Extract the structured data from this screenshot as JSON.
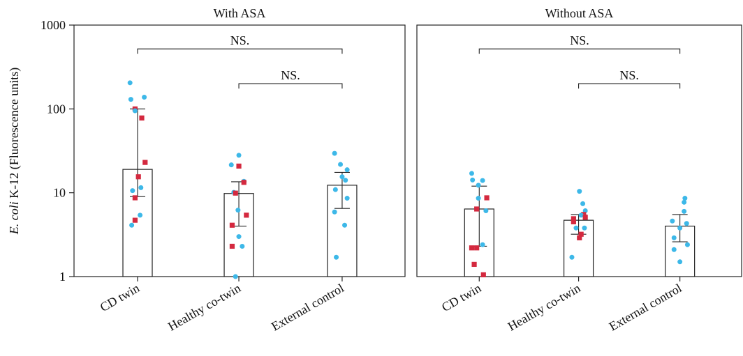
{
  "chart_data": {
    "type": "bar",
    "y_scale": "log",
    "ylim": [
      1,
      1000
    ],
    "yticks": [
      1,
      10,
      100,
      1000
    ],
    "ytick_labels": [
      "1",
      "10",
      "100",
      "1000"
    ],
    "ylabel_italic": "E. coli",
    "ylabel_rest": " K-12 (Fluorescence units)",
    "categories": [
      "CD twin",
      "Healthy co-twin",
      "External control"
    ],
    "colors": {
      "circle": "#3db8e8",
      "square": "#d4293f",
      "bar_edge": "#222222"
    },
    "panels": [
      {
        "title": "With ASA",
        "bars": [
          {
            "mean": 19,
            "err_low": 9,
            "err_high": 100
          },
          {
            "mean": 9.8,
            "err_low": 4,
            "err_high": 13.5
          },
          {
            "mean": 12.3,
            "err_low": 6.5,
            "err_high": 17.5
          }
        ],
        "points": [
          [
            {
              "v": 205,
              "m": "circle",
              "j": -0.45
            },
            {
              "v": 130,
              "m": "circle",
              "j": -0.4
            },
            {
              "v": 138,
              "m": "circle",
              "j": 0.4
            },
            {
              "v": 100,
              "m": "square",
              "j": -0.15
            },
            {
              "v": 95,
              "m": "circle",
              "j": -0.15
            },
            {
              "v": 78,
              "m": "square",
              "j": 0.25
            },
            {
              "v": 23,
              "m": "square",
              "j": 0.45
            },
            {
              "v": 15.5,
              "m": "square",
              "j": 0.05
            },
            {
              "v": 11.5,
              "m": "circle",
              "j": 0.2
            },
            {
              "v": 10.6,
              "m": "circle",
              "j": -0.3
            },
            {
              "v": 8.7,
              "m": "square",
              "j": -0.15
            },
            {
              "v": 5.4,
              "m": "circle",
              "j": 0.15
            },
            {
              "v": 4.7,
              "m": "square",
              "j": -0.15
            },
            {
              "v": 4.1,
              "m": "circle",
              "j": -0.35
            }
          ],
          [
            {
              "v": 28,
              "m": "circle",
              "j": 0.0
            },
            {
              "v": 21.5,
              "m": "circle",
              "j": -0.45
            },
            {
              "v": 20.8,
              "m": "square",
              "j": 0.0
            },
            {
              "v": 13.7,
              "m": "circle",
              "j": 0.3
            },
            {
              "v": 13.3,
              "m": "square",
              "j": 0.3
            },
            {
              "v": 10.1,
              "m": "circle",
              "j": -0.3
            },
            {
              "v": 9.9,
              "m": "square",
              "j": -0.2
            },
            {
              "v": 6.2,
              "m": "circle",
              "j": -0.05
            },
            {
              "v": 5.4,
              "m": "square",
              "j": 0.45
            },
            {
              "v": 4.1,
              "m": "square",
              "j": -0.4
            },
            {
              "v": 3.0,
              "m": "circle",
              "j": 0.0
            },
            {
              "v": 2.3,
              "m": "square",
              "j": -0.4
            },
            {
              "v": 2.3,
              "m": "circle",
              "j": 0.2
            },
            {
              "v": 1.0,
              "m": "circle",
              "j": -0.2
            }
          ],
          [
            {
              "v": 29.5,
              "m": "circle",
              "j": -0.45
            },
            {
              "v": 21.8,
              "m": "circle",
              "j": -0.1
            },
            {
              "v": 18.8,
              "m": "circle",
              "j": 0.3
            },
            {
              "v": 15.5,
              "m": "circle",
              "j": 0.0
            },
            {
              "v": 14.1,
              "m": "circle",
              "j": 0.2
            },
            {
              "v": 10.9,
              "m": "circle",
              "j": -0.4
            },
            {
              "v": 8.6,
              "m": "circle",
              "j": 0.3
            },
            {
              "v": 5.9,
              "m": "circle",
              "j": -0.45
            },
            {
              "v": 4.1,
              "m": "circle",
              "j": 0.15
            },
            {
              "v": 1.7,
              "m": "circle",
              "j": -0.35
            }
          ]
        ],
        "brackets": [
          {
            "from": 0,
            "to": 2,
            "y": 520,
            "label": "NS."
          },
          {
            "from": 1,
            "to": 2,
            "y": 200,
            "label": "NS."
          }
        ]
      },
      {
        "title": "Without ASA",
        "bars": [
          {
            "mean": 6.4,
            "err_low": 2.3,
            "err_high": 12
          },
          {
            "mean": 4.7,
            "err_low": 3.2,
            "err_high": 5.5
          },
          {
            "mean": 4.0,
            "err_low": 2.6,
            "err_high": 5.5
          }
        ],
        "points": [
          [
            {
              "v": 17,
              "m": "circle",
              "j": -0.45
            },
            {
              "v": 14.2,
              "m": "circle",
              "j": -0.4
            },
            {
              "v": 14.0,
              "m": "circle",
              "j": 0.2
            },
            {
              "v": 12.3,
              "m": "circle",
              "j": -0.05
            },
            {
              "v": 8.6,
              "m": "circle",
              "j": -0.05
            },
            {
              "v": 8.7,
              "m": "square",
              "j": 0.45
            },
            {
              "v": 6.4,
              "m": "square",
              "j": -0.15
            },
            {
              "v": 6.1,
              "m": "circle",
              "j": 0.4
            },
            {
              "v": 2.4,
              "m": "circle",
              "j": 0.2
            },
            {
              "v": 2.2,
              "m": "square",
              "j": -0.15
            },
            {
              "v": 2.2,
              "m": "square",
              "j": -0.45
            },
            {
              "v": 1.4,
              "m": "square",
              "j": -0.3
            },
            {
              "v": 1.05,
              "m": "square",
              "j": 0.25
            }
          ],
          [
            {
              "v": 10.4,
              "m": "circle",
              "j": 0.05
            },
            {
              "v": 7.4,
              "m": "circle",
              "j": 0.25
            },
            {
              "v": 6.1,
              "m": "circle",
              "j": 0.4
            },
            {
              "v": 5.5,
              "m": "square",
              "j": 0.3
            },
            {
              "v": 5.4,
              "m": "circle",
              "j": 0.15
            },
            {
              "v": 5.1,
              "m": "square",
              "j": 0.4
            },
            {
              "v": 4.9,
              "m": "square",
              "j": -0.3
            },
            {
              "v": 4.5,
              "m": "square",
              "j": -0.3
            },
            {
              "v": 3.8,
              "m": "circle",
              "j": -0.15
            },
            {
              "v": 3.8,
              "m": "circle",
              "j": 0.35
            },
            {
              "v": 3.2,
              "m": "square",
              "j": 0.15
            },
            {
              "v": 2.9,
              "m": "square",
              "j": 0.05
            },
            {
              "v": 1.7,
              "m": "circle",
              "j": -0.4
            }
          ],
          [
            {
              "v": 8.6,
              "m": "circle",
              "j": 0.3
            },
            {
              "v": 7.7,
              "m": "circle",
              "j": 0.25
            },
            {
              "v": 6.0,
              "m": "circle",
              "j": 0.25
            },
            {
              "v": 4.6,
              "m": "circle",
              "j": -0.45
            },
            {
              "v": 4.3,
              "m": "circle",
              "j": 0.4
            },
            {
              "v": 3.8,
              "m": "circle",
              "j": 0.0
            },
            {
              "v": 2.9,
              "m": "circle",
              "j": -0.35
            },
            {
              "v": 2.4,
              "m": "circle",
              "j": 0.45
            },
            {
              "v": 2.1,
              "m": "circle",
              "j": -0.35
            },
            {
              "v": 1.5,
              "m": "circle",
              "j": 0.0
            }
          ]
        ],
        "brackets": [
          {
            "from": 0,
            "to": 2,
            "y": 520,
            "label": "NS."
          },
          {
            "from": 1,
            "to": 2,
            "y": 200,
            "label": "NS."
          }
        ]
      }
    ]
  }
}
